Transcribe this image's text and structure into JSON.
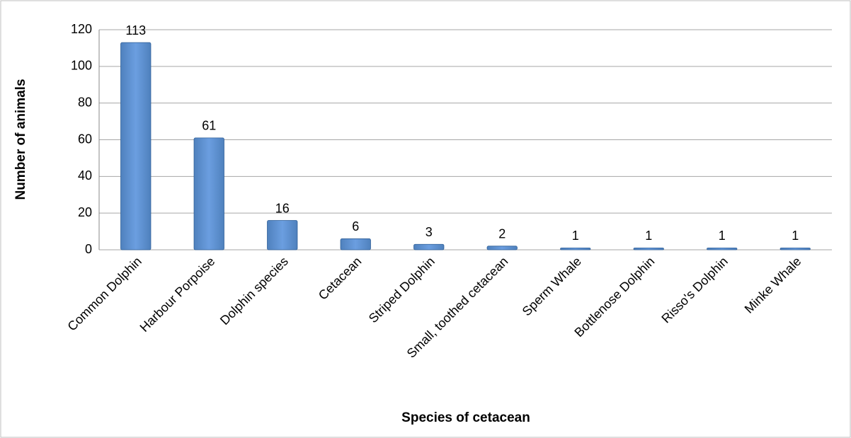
{
  "chart_data": {
    "type": "bar",
    "categories": [
      "Common Dolphin",
      "Harbour Porpoise",
      "Dolphin species",
      "Cetacean",
      "Striped Dolphin",
      "Small, toothed cetacean",
      "Sperm Whale",
      "Bottlenose Dolphin",
      "Risso's Dolphin",
      "Minke Whale"
    ],
    "values": [
      113,
      61,
      16,
      6,
      3,
      2,
      1,
      1,
      1,
      1
    ],
    "color": "#4f81bd",
    "xlabel": "Species of cetacean",
    "ylabel": "Number of animals",
    "ylim": [
      0,
      120
    ],
    "yticks": [
      0,
      20,
      40,
      60,
      80,
      100,
      120
    ],
    "grid": true
  }
}
